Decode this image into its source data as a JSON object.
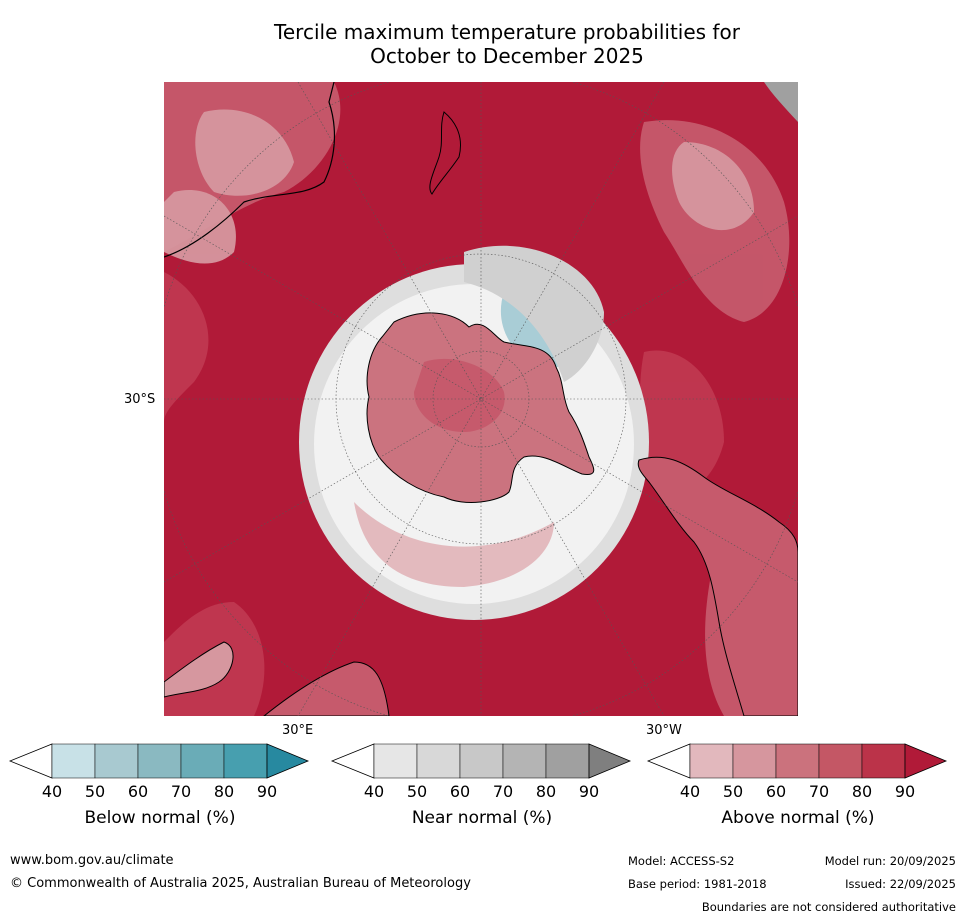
{
  "title": {
    "line1": "Tercile maximum temperature probabilities for",
    "line2": "October to December 2025"
  },
  "map": {
    "projection": "south-polar-stereographic",
    "lat_labels": [
      "30°S"
    ],
    "lon_labels": [
      "30°E",
      "30°W"
    ],
    "colors": {
      "above_90": "#b11a38",
      "above_80": "#c03850",
      "above_70": "#c65a6c",
      "above_60": "#cb737f",
      "above_50": "#d6979f",
      "above_40": "#e3babe",
      "near": "#dedede",
      "near_dark": "#bdbdbd",
      "below_50": "#a9cdd6",
      "white": "#ffffff",
      "land_outline": "#000000"
    }
  },
  "colorbars": [
    {
      "name": "below",
      "title": "Below normal (%)",
      "ticks": [
        "40",
        "50",
        "60",
        "70",
        "80",
        "90"
      ],
      "colors": [
        "#ffffff",
        "#c8e1e7",
        "#a8c9d0",
        "#8ab9c1",
        "#6aacb7",
        "#479faf",
        "#2789a0"
      ]
    },
    {
      "name": "near",
      "title": "Near normal (%)",
      "ticks": [
        "40",
        "50",
        "60",
        "70",
        "80",
        "90"
      ],
      "colors": [
        "#ffffff",
        "#e6e6e6",
        "#d8d8d8",
        "#c8c8c8",
        "#b4b4b4",
        "#a0a0a0",
        "#7f7f7f"
      ]
    },
    {
      "name": "above",
      "title": "Above normal (%)",
      "ticks": [
        "40",
        "50",
        "60",
        "70",
        "80",
        "90"
      ],
      "colors": [
        "#ffffff",
        "#e2b8bd",
        "#d6969e",
        "#cb727d",
        "#c45765",
        "#bb3349",
        "#b11a38"
      ]
    }
  ],
  "footer": {
    "url": "www.bom.gov.au/climate",
    "copyright": "© Commonwealth of Australia 2025, Australian Bureau of Meteorology",
    "model": "Model: ACCESS-S2",
    "base_period": "Base period: 1981-2018",
    "model_run": "Model run: 20/09/2025",
    "issued": "Issued: 22/09/2025",
    "disclaimer": "Boundaries are not considered authoritative"
  }
}
